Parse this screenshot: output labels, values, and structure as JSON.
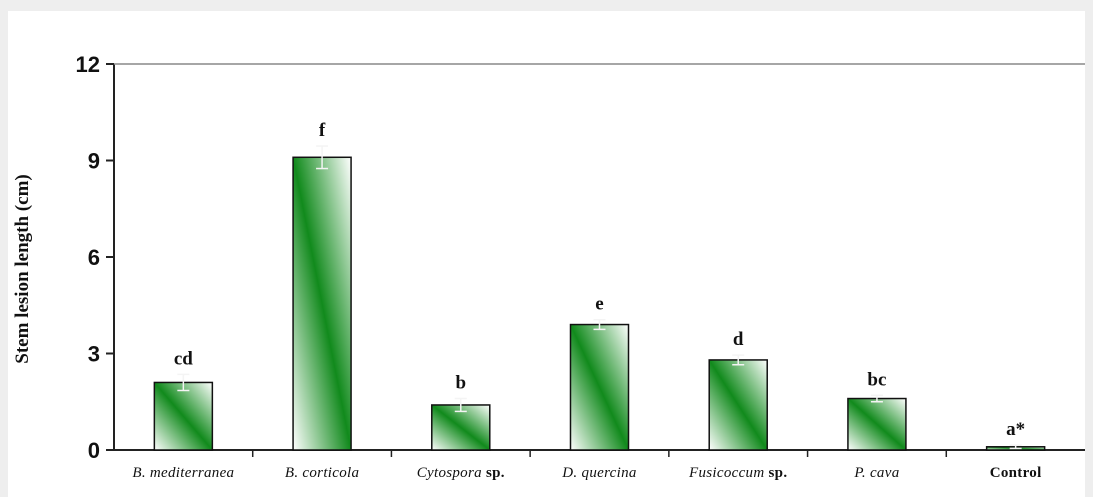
{
  "chart_data": {
    "type": "bar",
    "title": "",
    "xlabel": "",
    "ylabel": "Stem lesion length (cm)",
    "ylim": [
      0,
      12
    ],
    "yticks": [
      0,
      3,
      6,
      9,
      12
    ],
    "grid": false,
    "categories": [
      {
        "name": "B. mediterranea",
        "italic": "B. mediterranea",
        "suffix": ""
      },
      {
        "name": "B. corticola",
        "italic": "B. corticola",
        "suffix": ""
      },
      {
        "name": "Cytospora sp.",
        "italic": "Cytospora",
        "suffix": " sp."
      },
      {
        "name": "D. quercina",
        "italic": "D. quercina",
        "suffix": ""
      },
      {
        "name": "Fusicoccum sp.",
        "italic": "Fusicoccum",
        "suffix": " sp."
      },
      {
        "name": "P. cava",
        "italic": "P. cava",
        "suffix": ""
      },
      {
        "name": "Control",
        "italic": "",
        "suffix": "Control"
      }
    ],
    "values": [
      2.1,
      9.1,
      1.4,
      3.9,
      2.8,
      1.6,
      0.1
    ],
    "errors": [
      0.25,
      0.35,
      0.2,
      0.15,
      0.15,
      0.1,
      0.05
    ],
    "labels": [
      "cd",
      "f",
      "b",
      "e",
      "d",
      "bc",
      "a*"
    ],
    "bar_colors": {
      "light": "#ffffff",
      "dark": "#118a1c"
    }
  }
}
